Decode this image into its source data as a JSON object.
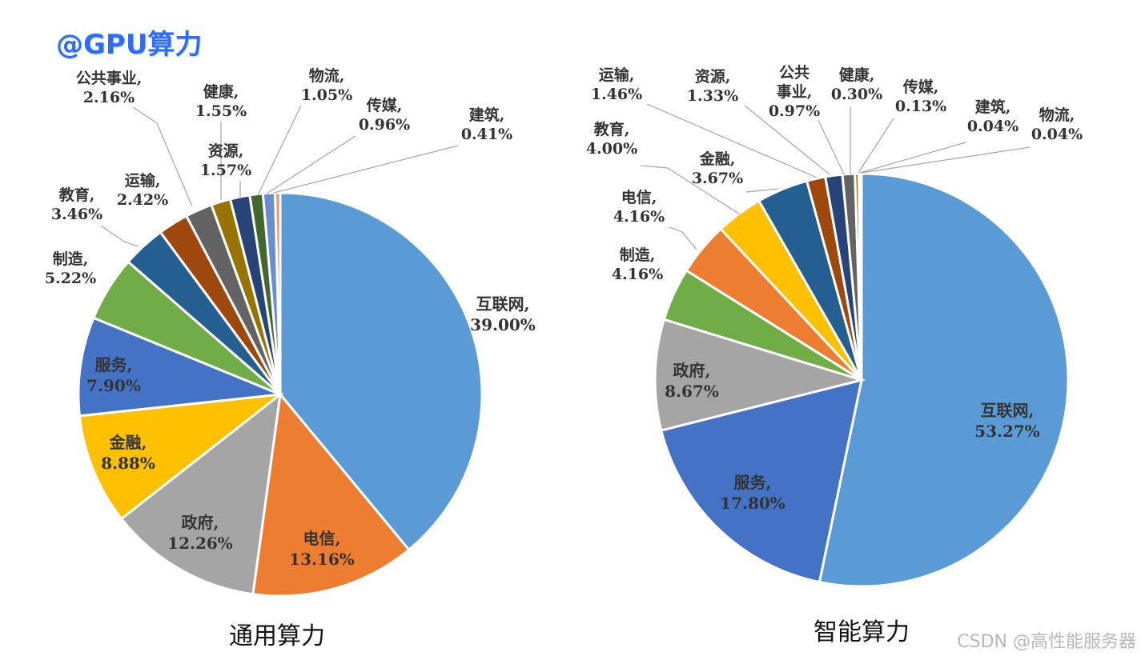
{
  "watermark": {
    "top_left": "@GPU算力",
    "bottom_right": "CSDN @高性能服务器"
  },
  "colors": {
    "互联网": "#5b9bd5",
    "电信": "#ed7d31",
    "政府": "#a5a5a5",
    "金融": "#ffc000",
    "服务": "#4472c4",
    "制造": "#70ad47",
    "教育": "#255e91",
    "运输": "#9e480e",
    "公共事业": "#636363",
    "健康": "#997300",
    "资源": "#264478",
    "物流": "#43682b",
    "传媒": "#698ed0",
    "建筑": "#f1975a"
  },
  "chart_data": [
    {
      "type": "pie",
      "title": "通用算力",
      "slices": [
        {
          "name": "互联网",
          "value": 39.0,
          "label": "39.00%"
        },
        {
          "name": "电信",
          "value": 13.16,
          "label": "13.16%"
        },
        {
          "name": "政府",
          "value": 12.26,
          "label": "12.26%"
        },
        {
          "name": "金融",
          "value": 8.88,
          "label": "8.88%"
        },
        {
          "name": "服务",
          "value": 7.9,
          "label": "7.90%"
        },
        {
          "name": "制造",
          "value": 5.22,
          "label": "5.22%"
        },
        {
          "name": "教育",
          "value": 3.46,
          "label": "3.46%"
        },
        {
          "name": "运输",
          "value": 2.42,
          "label": "2.42%"
        },
        {
          "name": "公共事业",
          "value": 2.16,
          "label": "2.16%"
        },
        {
          "name": "健康",
          "value": 1.55,
          "label": "1.55%"
        },
        {
          "name": "资源",
          "value": 1.57,
          "label": "1.57%"
        },
        {
          "name": "物流",
          "value": 1.05,
          "label": "1.05%"
        },
        {
          "name": "传媒",
          "value": 0.96,
          "label": "0.96%"
        },
        {
          "name": "建筑",
          "value": 0.41,
          "label": "0.41%"
        }
      ]
    },
    {
      "type": "pie",
      "title": "智能算力",
      "slices": [
        {
          "name": "互联网",
          "value": 53.27,
          "label": "53.27%"
        },
        {
          "name": "服务",
          "value": 17.8,
          "label": "17.80%"
        },
        {
          "name": "政府",
          "value": 8.67,
          "label": "8.67%"
        },
        {
          "name": "制造",
          "value": 4.16,
          "label": "4.16%"
        },
        {
          "name": "电信",
          "value": 4.16,
          "label": "4.16%"
        },
        {
          "name": "金融",
          "value": 3.67,
          "label": "3.67%"
        },
        {
          "name": "教育",
          "value": 4.0,
          "label": "4.00%"
        },
        {
          "name": "运输",
          "value": 1.46,
          "label": "1.46%"
        },
        {
          "name": "资源",
          "value": 1.33,
          "label": "1.33%"
        },
        {
          "name": "公共事业",
          "value": 0.97,
          "label": "0.97%"
        },
        {
          "name": "健康",
          "value": 0.3,
          "label": "0.30%"
        },
        {
          "name": "传媒",
          "value": 0.13,
          "label": "0.13%"
        },
        {
          "name": "建筑",
          "value": 0.04,
          "label": "0.04%"
        },
        {
          "name": "物流",
          "value": 0.04,
          "label": "0.04%"
        }
      ]
    }
  ]
}
